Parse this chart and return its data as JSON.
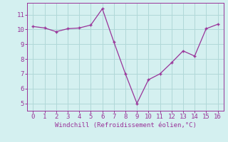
{
  "x": [
    0,
    1,
    2,
    3,
    4,
    5,
    6,
    7,
    8,
    9,
    10,
    11,
    12,
    13,
    14,
    15,
    16
  ],
  "y": [
    10.2,
    10.1,
    9.85,
    10.05,
    10.1,
    10.3,
    11.4,
    9.15,
    7.0,
    5.0,
    6.6,
    7.0,
    7.75,
    8.55,
    8.2,
    10.05,
    10.35
  ],
  "line_color": "#993399",
  "marker": "+",
  "background_color": "#d4f0f0",
  "grid_color": "#b0d8d8",
  "xlabel": "Windchill (Refroidissement éolien,°C)",
  "xlabel_color": "#993399",
  "tick_color": "#993399",
  "label_color": "#993399",
  "xlim": [
    -0.5,
    16.5
  ],
  "ylim": [
    4.5,
    11.8
  ],
  "yticks": [
    5,
    6,
    7,
    8,
    9,
    10,
    11
  ],
  "xticks": [
    0,
    1,
    2,
    3,
    4,
    5,
    6,
    7,
    8,
    9,
    10,
    11,
    12,
    13,
    14,
    15,
    16
  ]
}
